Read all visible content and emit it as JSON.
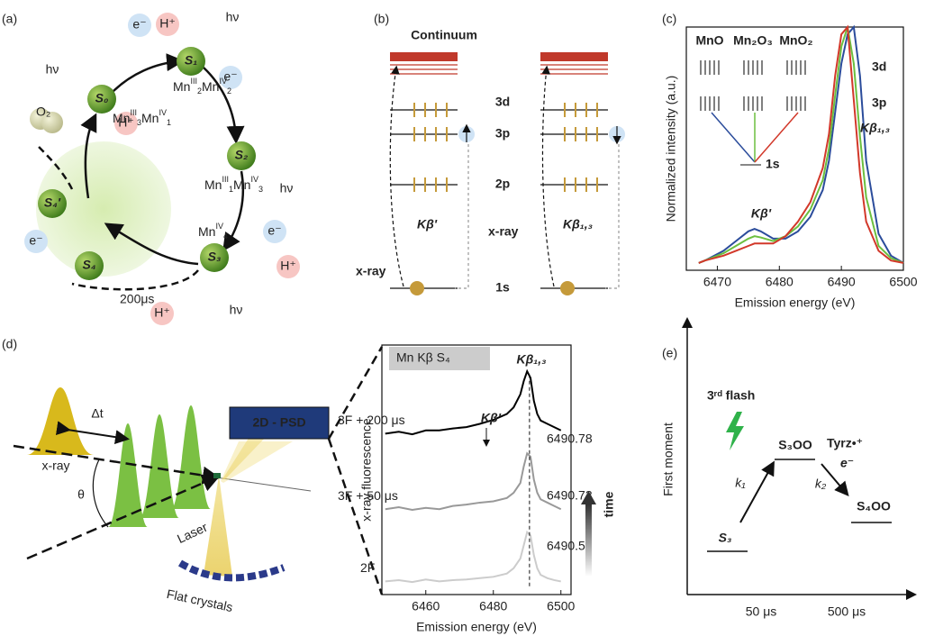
{
  "panel_labels": [
    "(a)",
    "(b)",
    "(c)",
    "(d)",
    "(e)"
  ],
  "a": {
    "states": [
      "S₀",
      "S₁",
      "S₂",
      "S₃",
      "S₄",
      "S₄'"
    ],
    "tokens": [
      "H⁺",
      "e⁻",
      "e⁻",
      "H⁺",
      "e⁻",
      "e⁻",
      "H⁺",
      "H⁺"
    ],
    "light": [
      "hν",
      "hν",
      "hν",
      "hν"
    ],
    "oxygen": "O₂",
    "delay": "200μs",
    "mn_s0": [
      "Mn",
      "III",
      "3",
      "Mn",
      "IV",
      "1"
    ],
    "mn_s1": [
      "Mn",
      "III",
      "2",
      "Mn",
      "IV",
      "2"
    ],
    "mn_s2": [
      "Mn",
      "III",
      "1",
      "Mn",
      "IV",
      "3"
    ],
    "mn_s3": [
      "Mn",
      "IV",
      "4"
    ]
  },
  "b": {
    "title": "Continuum",
    "levels": [
      "3d",
      "3p",
      "2p",
      "1s"
    ],
    "xray": [
      "x-ray",
      "x-ray"
    ],
    "lines": [
      "Kβ'",
      "Kβ₁,₃"
    ]
  },
  "c_inset": {
    "levels": [
      "3d",
      "3p",
      "1s"
    ]
  },
  "d_setup": {
    "delay": "Δt",
    "xray": "x-ray",
    "angle": "θ",
    "laser": "Laser",
    "detector": "2D - PSD",
    "crystals": "Flat crystals"
  },
  "e": {
    "y_label": "First moment",
    "flash": "3ʳᵈ flash",
    "states": [
      "S₃",
      "S₃OO",
      "S₄OO"
    ],
    "rates": [
      "k₁",
      "k₂"
    ],
    "tyr": "Tyrᴢ•⁺",
    "electron": "e⁻",
    "times": [
      "50 μs",
      "500 μs"
    ]
  },
  "chart_data": [
    {
      "type": "line",
      "x_label": "Emission energy (eV)",
      "y_label": "Normalized intensity (a.u.)",
      "x": [
        6467,
        6468,
        6471,
        6473,
        6475,
        6476,
        6477,
        6479,
        6481,
        6483,
        6485,
        6487,
        6488,
        6489,
        6490,
        6491,
        6492,
        6493,
        6494,
        6496,
        6498,
        6500
      ],
      "series": [
        {
          "name": "MnO",
          "color": "#2b4c9b",
          "values": [
            0.03,
            0.04,
            0.08,
            0.12,
            0.16,
            0.17,
            0.16,
            0.13,
            0.13,
            0.16,
            0.22,
            0.33,
            0.45,
            0.65,
            0.85,
            0.97,
            1.0,
            0.8,
            0.45,
            0.15,
            0.06,
            0.03
          ]
        },
        {
          "name": "Mn₂O₃",
          "color": "#6cbf3f",
          "values": [
            0.03,
            0.04,
            0.07,
            0.1,
            0.13,
            0.14,
            0.135,
            0.12,
            0.14,
            0.18,
            0.25,
            0.37,
            0.5,
            0.72,
            0.92,
            1.0,
            0.85,
            0.55,
            0.3,
            0.1,
            0.05,
            0.03
          ]
        },
        {
          "name": "MnO₂",
          "color": "#d2382a",
          "values": [
            0.03,
            0.04,
            0.06,
            0.08,
            0.1,
            0.11,
            0.11,
            0.11,
            0.14,
            0.2,
            0.28,
            0.42,
            0.56,
            0.8,
            0.97,
            1.0,
            0.7,
            0.4,
            0.2,
            0.08,
            0.04,
            0.03
          ]
        }
      ],
      "xlim": [
        6465,
        6500
      ],
      "ylim": [
        0,
        1
      ],
      "xticks": [
        6470,
        6480,
        6490,
        6500
      ],
      "annotations": [
        "Kβ'",
        "Kβ₁,₃"
      ]
    },
    {
      "type": "line",
      "title": "Mn Kβ S₄",
      "x_label": "Emission energy (eV)",
      "y_label": "x-ray fluorescence",
      "x": [
        6448,
        6452,
        6456,
        6460,
        6464,
        6468,
        6472,
        6476,
        6480,
        6484,
        6486,
        6488,
        6489,
        6490,
        6491,
        6492,
        6493,
        6494,
        6496,
        6498,
        6500
      ],
      "series": [
        {
          "name": "3F + 200 μs",
          "color": "#000000",
          "values": [
            2.45,
            2.48,
            2.44,
            2.5,
            2.5,
            2.53,
            2.55,
            2.6,
            2.66,
            2.75,
            2.85,
            3.05,
            3.25,
            3.4,
            3.3,
            2.95,
            2.75,
            2.65,
            2.6,
            2.55,
            2.5
          ]
        },
        {
          "name": "3F + 50 μs",
          "color": "#999999",
          "values": [
            1.3,
            1.33,
            1.29,
            1.32,
            1.3,
            1.35,
            1.37,
            1.4,
            1.42,
            1.47,
            1.55,
            1.7,
            1.95,
            2.15,
            2.1,
            1.75,
            1.55,
            1.45,
            1.4,
            1.35,
            1.3
          ]
        },
        {
          "name": "2F",
          "color": "#cccccc",
          "values": [
            0.2,
            0.22,
            0.19,
            0.23,
            0.2,
            0.22,
            0.23,
            0.25,
            0.27,
            0.32,
            0.4,
            0.55,
            0.75,
            0.95,
            0.9,
            0.6,
            0.4,
            0.3,
            0.25,
            0.22,
            0.2
          ]
        }
      ],
      "xlim": [
        6447,
        6503
      ],
      "ylim": [
        0,
        3.8
      ],
      "xticks": [
        6460,
        6480,
        6500
      ],
      "annotations": [
        "Kβ'",
        "Kβ₁,₃",
        "6490.78",
        "6490.73",
        "6490.55",
        "time"
      ]
    }
  ]
}
